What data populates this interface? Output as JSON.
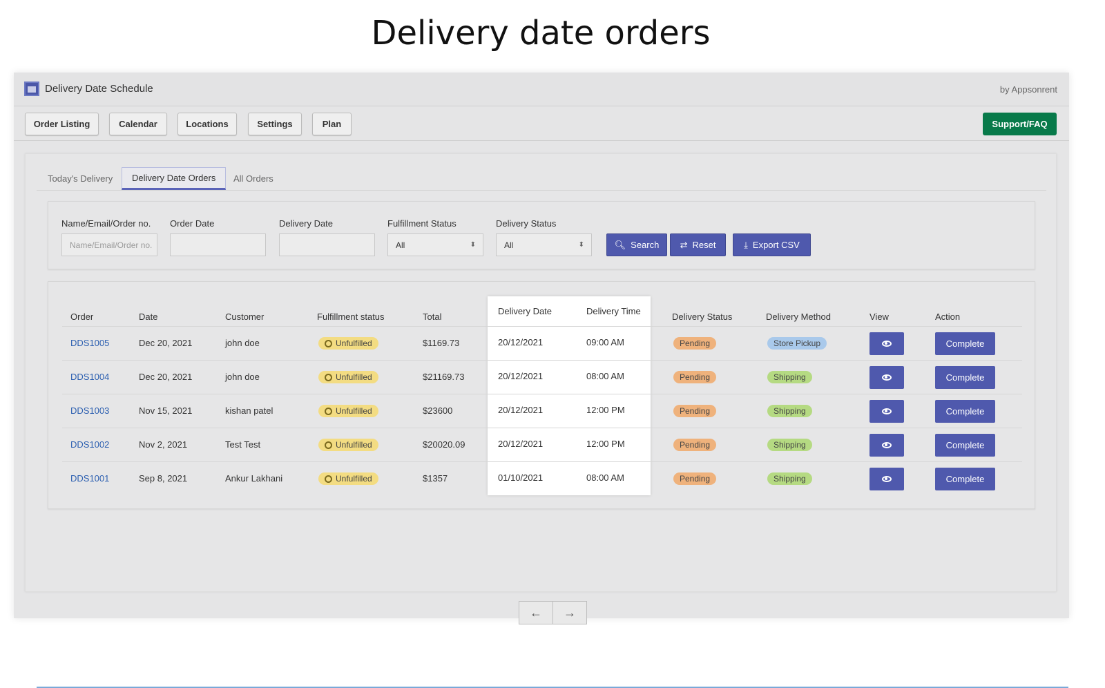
{
  "page_title": "Delivery date orders",
  "app": {
    "title": "Delivery Date Schedule",
    "by": "by Appsonrent"
  },
  "nav": {
    "items": [
      "Order Listing",
      "Calendar",
      "Locations",
      "Settings",
      "Plan"
    ],
    "support": "Support/FAQ"
  },
  "tabs": [
    "Today's Delivery",
    "Delivery Date Orders",
    "All Orders"
  ],
  "filters": {
    "name_label": "Name/Email/Order no.",
    "name_placeholder": "Name/Email/Order no.",
    "order_date_label": "Order Date",
    "delivery_date_label": "Delivery Date",
    "fulfillment_label": "Fulfillment Status",
    "fulfillment_value": "All",
    "delivery_status_label": "Delivery Status",
    "delivery_status_value": "All",
    "search": "Search",
    "reset": "Reset",
    "export": "Export CSV"
  },
  "table": {
    "headers": [
      "Order",
      "Date",
      "Customer",
      "Fulfillment status",
      "Total",
      "Delivery Date",
      "Delivery Time",
      "Delivery Status",
      "Delivery Method",
      "View",
      "Action"
    ],
    "rows": [
      {
        "order": "DDS1005",
        "date": "Dec 20, 2021",
        "customer": "john doe",
        "fulfillment": "Unfulfilled",
        "total": "$1169.73",
        "delivery_date": "20/12/2021",
        "delivery_time": "09:00 AM",
        "status": "Pending",
        "method": "Store Pickup",
        "action": "Complete"
      },
      {
        "order": "DDS1004",
        "date": "Dec 20, 2021",
        "customer": "john doe",
        "fulfillment": "Unfulfilled",
        "total": "$21169.73",
        "delivery_date": "20/12/2021",
        "delivery_time": "08:00 AM",
        "status": "Pending",
        "method": "Shipping",
        "action": "Complete"
      },
      {
        "order": "DDS1003",
        "date": "Nov 15, 2021",
        "customer": "kishan patel",
        "fulfillment": "Unfulfilled",
        "total": "$23600",
        "delivery_date": "20/12/2021",
        "delivery_time": "12:00 PM",
        "status": "Pending",
        "method": "Shipping",
        "action": "Complete"
      },
      {
        "order": "DDS1002",
        "date": "Nov 2, 2021",
        "customer": "Test Test",
        "fulfillment": "Unfulfilled",
        "total": "$20020.09",
        "delivery_date": "20/12/2021",
        "delivery_time": "12:00 PM",
        "status": "Pending",
        "method": "Shipping",
        "action": "Complete"
      },
      {
        "order": "DDS1001",
        "date": "Sep 8, 2021",
        "customer": "Ankur Lakhani",
        "fulfillment": "Unfulfilled",
        "total": "$1357",
        "delivery_date": "01/10/2021",
        "delivery_time": "08:00 AM",
        "status": "Pending",
        "method": "Shipping",
        "action": "Complete"
      }
    ]
  },
  "pager": {
    "prev": "←",
    "next": "→"
  },
  "colors": {
    "primary": "#4f59ad",
    "support": "#087a4a",
    "pending": "#efb27c",
    "unfulfilled": "#f3dc82",
    "shipping": "#b5da82",
    "store_pickup": "#a9c9eb"
  }
}
